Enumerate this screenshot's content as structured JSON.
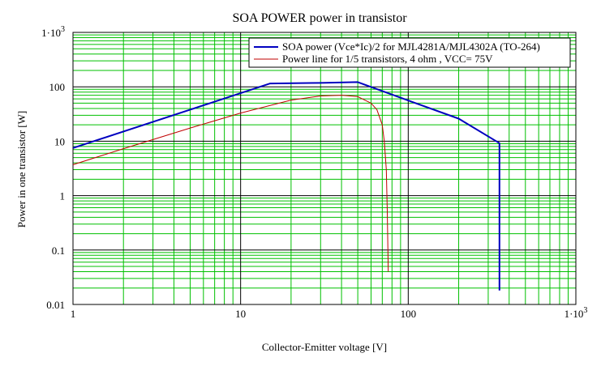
{
  "chart_data": {
    "type": "line",
    "title": "SOA POWER power in transistor",
    "xlabel": "Collector-Emitter voltage [V]",
    "ylabel": "Power in one transistor [W]",
    "xscale": "log",
    "yscale": "log",
    "xlim": [
      1,
      1000
    ],
    "ylim": [
      0.01,
      1000
    ],
    "x_ticks": [
      {
        "value": 1,
        "label": "1"
      },
      {
        "value": 10,
        "label": "10"
      },
      {
        "value": 100,
        "label": "100"
      },
      {
        "value": 1000,
        "label": "1·10",
        "sup": "3"
      }
    ],
    "y_ticks": [
      {
        "value": 1000,
        "label": "1·10",
        "sup": "3"
      },
      {
        "value": 100,
        "label": "100"
      },
      {
        "value": 10,
        "label": "10"
      },
      {
        "value": 1,
        "label": "1"
      },
      {
        "value": 0.1,
        "label": "0.1"
      },
      {
        "value": 0.01,
        "label": "0.01"
      }
    ],
    "grid": true,
    "legend_position": "top-right",
    "colors": {
      "major_grid": "#000000",
      "minor_grid": "#00c000"
    },
    "series": [
      {
        "name": "SOA power (Vce*Ic)/2 for MJL4281A/MJL4302A (TO-264)",
        "color": "#0000c0",
        "points": [
          [
            1,
            7.5
          ],
          [
            15,
            115
          ],
          [
            30,
            118
          ],
          [
            50,
            122
          ],
          [
            100,
            56
          ],
          [
            200,
            26
          ],
          [
            350,
            9.2
          ],
          [
            350,
            0.018
          ]
        ]
      },
      {
        "name": "Power line for 1/5 transistors, 4 ohm , VCC= 75V",
        "color": "#c00000",
        "points": [
          [
            1,
            3.7
          ],
          [
            2,
            7.3
          ],
          [
            5,
            17.5
          ],
          [
            10,
            33
          ],
          [
            20,
            57
          ],
          [
            30,
            68
          ],
          [
            40,
            70
          ],
          [
            50,
            66
          ],
          [
            60,
            50
          ],
          [
            65,
            38
          ],
          [
            70,
            20
          ],
          [
            72,
            10
          ],
          [
            74,
            3
          ],
          [
            75,
            0.5
          ],
          [
            76,
            0.04
          ]
        ]
      }
    ]
  }
}
